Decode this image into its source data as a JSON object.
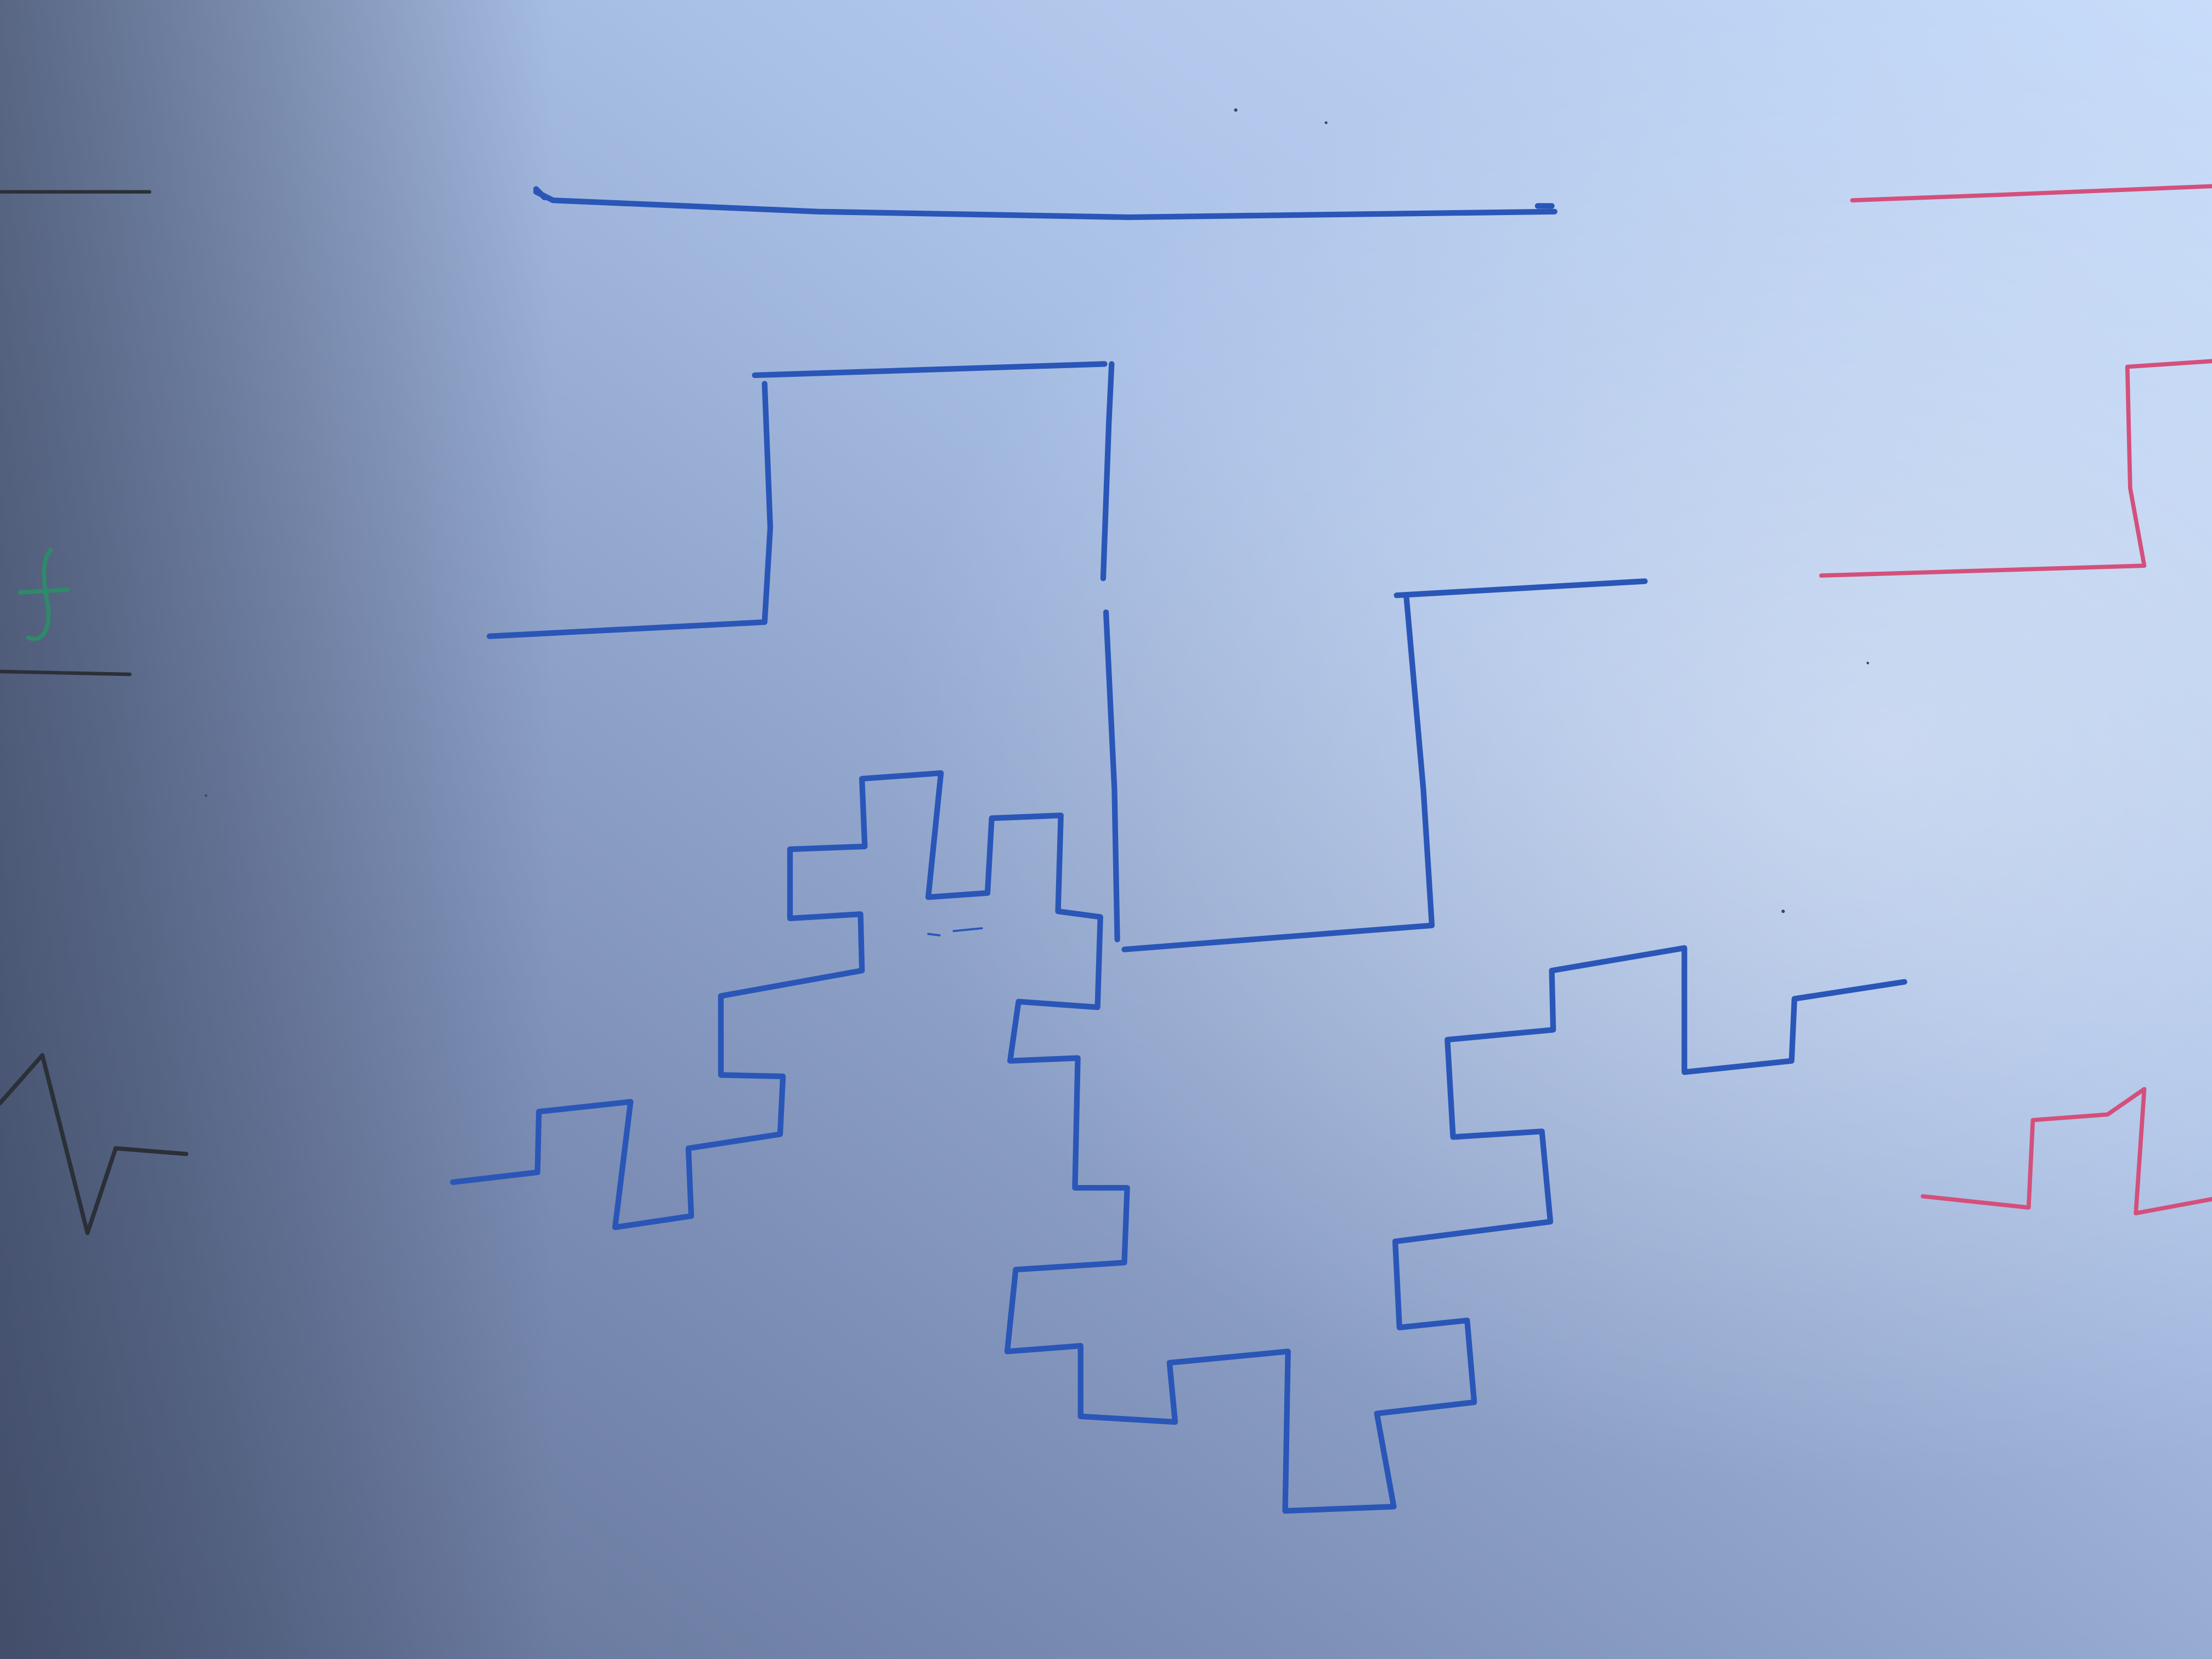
{
  "photo": {
    "subject": "whiteboard-fractal-curve-drawings",
    "marker_colors": {
      "blue": "#2a56b8",
      "red": "#d4507c",
      "green": "#2e8a6a",
      "black": "#2b3038"
    },
    "board_colors": {
      "bright": "#c3d8f7",
      "mid": "#9fb6dc",
      "dark": "#5f6f94",
      "shadow": "#46546f"
    },
    "drawings": [
      {
        "name": "koch-iteration-0-line",
        "color": "blue"
      },
      {
        "name": "koch-iteration-1-square",
        "color": "blue"
      },
      {
        "name": "koch-iteration-2-square",
        "color": "blue"
      },
      {
        "name": "red-iteration-0-line",
        "color": "red"
      },
      {
        "name": "red-iteration-1-square",
        "color": "red"
      },
      {
        "name": "red-iteration-2-square",
        "color": "red"
      },
      {
        "name": "green-sign-glyph",
        "color": "green"
      },
      {
        "name": "black-lines",
        "color": "black"
      },
      {
        "name": "black-zigzag",
        "color": "black"
      }
    ]
  }
}
